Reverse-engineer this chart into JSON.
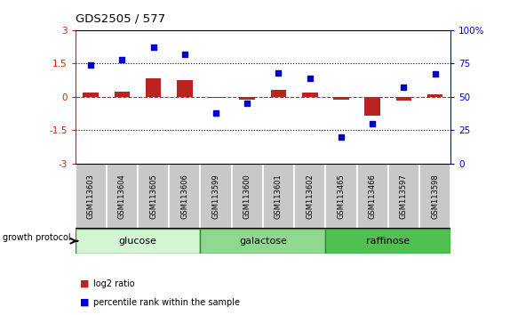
{
  "title": "GDS2505 / 577",
  "samples": [
    "GSM113603",
    "GSM113604",
    "GSM113605",
    "GSM113606",
    "GSM113599",
    "GSM113600",
    "GSM113601",
    "GSM113602",
    "GSM113465",
    "GSM113466",
    "GSM113597",
    "GSM113598"
  ],
  "log2_ratio": [
    0.18,
    0.22,
    0.85,
    0.75,
    -0.05,
    -0.12,
    0.32,
    0.18,
    -0.12,
    -0.85,
    -0.18,
    0.13
  ],
  "percentile_rank": [
    74,
    78,
    87,
    82,
    38,
    45,
    68,
    64,
    20,
    30,
    57,
    67
  ],
  "groups": [
    {
      "label": "glucose",
      "start": 0,
      "end": 4,
      "color": "#d4f5d4"
    },
    {
      "label": "galactose",
      "start": 4,
      "end": 8,
      "color": "#90d890"
    },
    {
      "label": "raffinose",
      "start": 8,
      "end": 12,
      "color": "#50c050"
    }
  ],
  "ylim_left": [
    -3,
    3
  ],
  "ylim_right": [
    0,
    100
  ],
  "yticks_left": [
    -3,
    -1.5,
    0,
    1.5,
    3
  ],
  "yticks_right": [
    0,
    25,
    50,
    75,
    100
  ],
  "hlines": [
    1.5,
    -1.5
  ],
  "hline_zero": 0,
  "bar_color": "#bb2222",
  "dot_color": "#0000cc",
  "background_color": "#ffffff",
  "plot_bg": "#ffffff",
  "right_axis_color": "#0000cc",
  "left_axis_color": "#cc2200",
  "growth_protocol_label": "growth protocol",
  "legend_log2": "log2 ratio",
  "legend_pct": "percentile rank within the sample"
}
